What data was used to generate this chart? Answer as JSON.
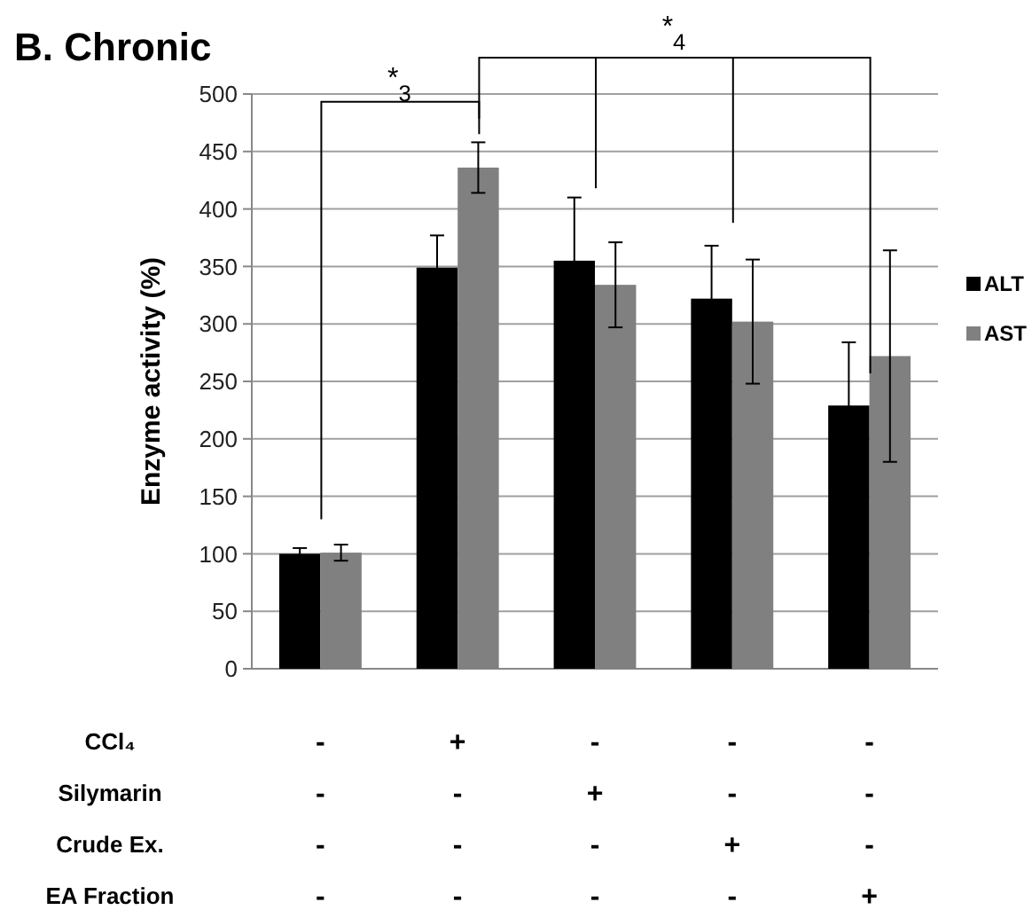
{
  "chart_data": {
    "type": "bar",
    "title": "B. Chronic",
    "ylabel": "Enzyme activity (%)",
    "categories": [
      null,
      null,
      null,
      null,
      null
    ],
    "series": [
      {
        "name": "ALT",
        "color": "#000000",
        "values": [
          100,
          349,
          355,
          322,
          229
        ],
        "errors": [
          5,
          28,
          55,
          46,
          55
        ]
      },
      {
        "name": "AST",
        "color": "#808080",
        "values": [
          101,
          436,
          334,
          302,
          272
        ],
        "errors": [
          7,
          22,
          37,
          54,
          92
        ]
      }
    ],
    "ylim": [
      0,
      500
    ],
    "yticks": [
      0,
      50,
      100,
      150,
      200,
      250,
      300,
      350,
      400,
      450,
      500
    ],
    "grid": "y",
    "legend": "right",
    "annotations": [
      "*$_{3}$",
      "*$_{4}$",
      "CCl₄",
      "-",
      "+",
      "-",
      "-",
      "-",
      "Silymarin",
      "-",
      "-",
      "+",
      "-",
      "-",
      "Crude Ex.",
      "-",
      "-",
      "-",
      "+",
      "-",
      "EA Fraction",
      "-",
      "-",
      "-",
      "-",
      "+"
    ]
  }
}
